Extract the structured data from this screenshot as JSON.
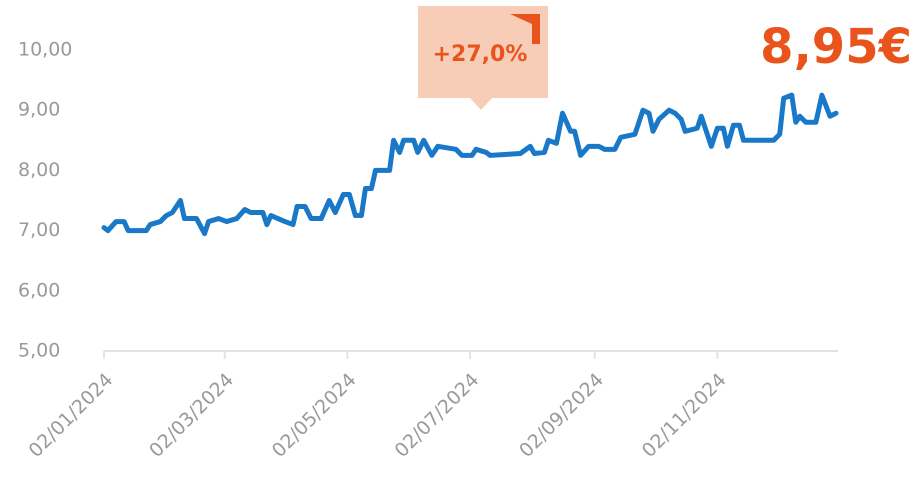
{
  "chart_data": {
    "type": "line",
    "annotations": {
      "change": "+27,0%",
      "last_price": "8,95€"
    },
    "x": [
      "2024-01-02",
      "2024-01-04",
      "2024-01-08",
      "2024-01-12",
      "2024-01-14",
      "2024-01-23",
      "2024-01-25",
      "2024-01-30",
      "2024-02-02",
      "2024-02-05",
      "2024-02-09",
      "2024-02-11",
      "2024-02-17",
      "2024-02-21",
      "2024-02-23",
      "2024-02-28",
      "2024-03-03",
      "2024-03-08",
      "2024-03-12",
      "2024-03-15",
      "2024-03-21",
      "2024-03-23",
      "2024-03-25",
      "2024-04-01",
      "2024-04-05",
      "2024-04-07",
      "2024-04-11",
      "2024-04-14",
      "2024-04-19",
      "2024-04-23",
      "2024-04-26",
      "2024-04-30",
      "2024-05-03",
      "2024-05-06",
      "2024-05-09",
      "2024-05-11",
      "2024-05-14",
      "2024-05-16",
      "2024-05-23",
      "2024-05-25",
      "2024-05-28",
      "2024-05-30",
      "2024-06-04",
      "2024-06-06",
      "2024-06-09",
      "2024-06-13",
      "2024-06-16",
      "2024-06-25",
      "2024-06-28",
      "2024-07-03",
      "2024-07-05",
      "2024-07-10",
      "2024-07-12",
      "2024-07-27",
      "2024-08-01",
      "2024-08-03",
      "2024-08-08",
      "2024-08-10",
      "2024-08-14",
      "2024-08-17",
      "2024-08-21",
      "2024-08-23",
      "2024-08-26",
      "2024-08-30",
      "2024-09-04",
      "2024-09-07",
      "2024-09-12",
      "2024-09-15",
      "2024-09-22",
      "2024-09-26",
      "2024-09-29",
      "2024-10-01",
      "2024-10-04",
      "2024-10-09",
      "2024-10-12",
      "2024-10-15",
      "2024-10-17",
      "2024-10-23",
      "2024-10-25",
      "2024-10-28",
      "2024-10-30",
      "2024-11-02",
      "2024-11-05",
      "2024-11-07",
      "2024-11-10",
      "2024-11-13",
      "2024-11-15",
      "2024-11-30",
      "2024-12-03",
      "2024-12-05",
      "2024-12-09",
      "2024-12-11",
      "2024-12-13",
      "2024-12-16",
      "2024-12-21",
      "2024-12-24",
      "2024-12-28",
      "2024-12-31"
    ],
    "series": [
      {
        "color": "#1a78c8",
        "values": [
          7.05,
          7.0,
          7.15,
          7.15,
          7.0,
          7.0,
          7.1,
          7.15,
          7.25,
          7.3,
          7.5,
          7.2,
          7.2,
          6.95,
          7.15,
          7.2,
          7.15,
          7.2,
          7.35,
          7.3,
          7.3,
          7.1,
          7.25,
          7.15,
          7.1,
          7.4,
          7.4,
          7.2,
          7.2,
          7.5,
          7.3,
          7.6,
          7.6,
          7.25,
          7.25,
          7.7,
          7.7,
          8.0,
          8.0,
          8.5,
          8.3,
          8.5,
          8.5,
          8.3,
          8.5,
          8.25,
          8.4,
          8.35,
          8.25,
          8.25,
          8.35,
          8.3,
          8.25,
          8.28,
          8.4,
          8.28,
          8.3,
          8.5,
          8.45,
          8.95,
          8.65,
          8.65,
          8.25,
          8.4,
          8.4,
          8.35,
          8.35,
          8.55,
          8.6,
          9.0,
          8.95,
          8.65,
          8.85,
          9.0,
          8.95,
          8.85,
          8.65,
          8.7,
          8.9,
          8.6,
          8.4,
          8.7,
          8.7,
          8.4,
          8.75,
          8.75,
          8.5,
          8.5,
          8.6,
          9.2,
          9.25,
          8.8,
          8.9,
          8.8,
          8.8,
          9.25,
          8.9,
          8.95
        ]
      }
    ],
    "ylim": [
      5,
      10
    ],
    "yticks": [
      {
        "value": 5,
        "label": "5,00"
      },
      {
        "value": 6,
        "label": "6,00"
      },
      {
        "value": 7,
        "label": "7,00"
      },
      {
        "value": 8,
        "label": "8,00"
      },
      {
        "value": 9,
        "label": "9,00"
      },
      {
        "value": 10,
        "label": "10,00"
      }
    ],
    "xlim": [
      "2024-01-02",
      "2024-12-31"
    ],
    "xticks": [
      {
        "value": "2024-01-02",
        "label": "02/01/2024"
      },
      {
        "value": "2024-03-02",
        "label": "02/03/2024"
      },
      {
        "value": "2024-05-02",
        "label": "02/05/2024"
      },
      {
        "value": "2024-07-02",
        "label": "02/07/2024"
      },
      {
        "value": "2024-09-02",
        "label": "02/09/2024"
      },
      {
        "value": "2024-11-02",
        "label": "02/11/2024"
      }
    ],
    "accent_color": "#e8541c",
    "badge_color": "#f8cdb8"
  }
}
